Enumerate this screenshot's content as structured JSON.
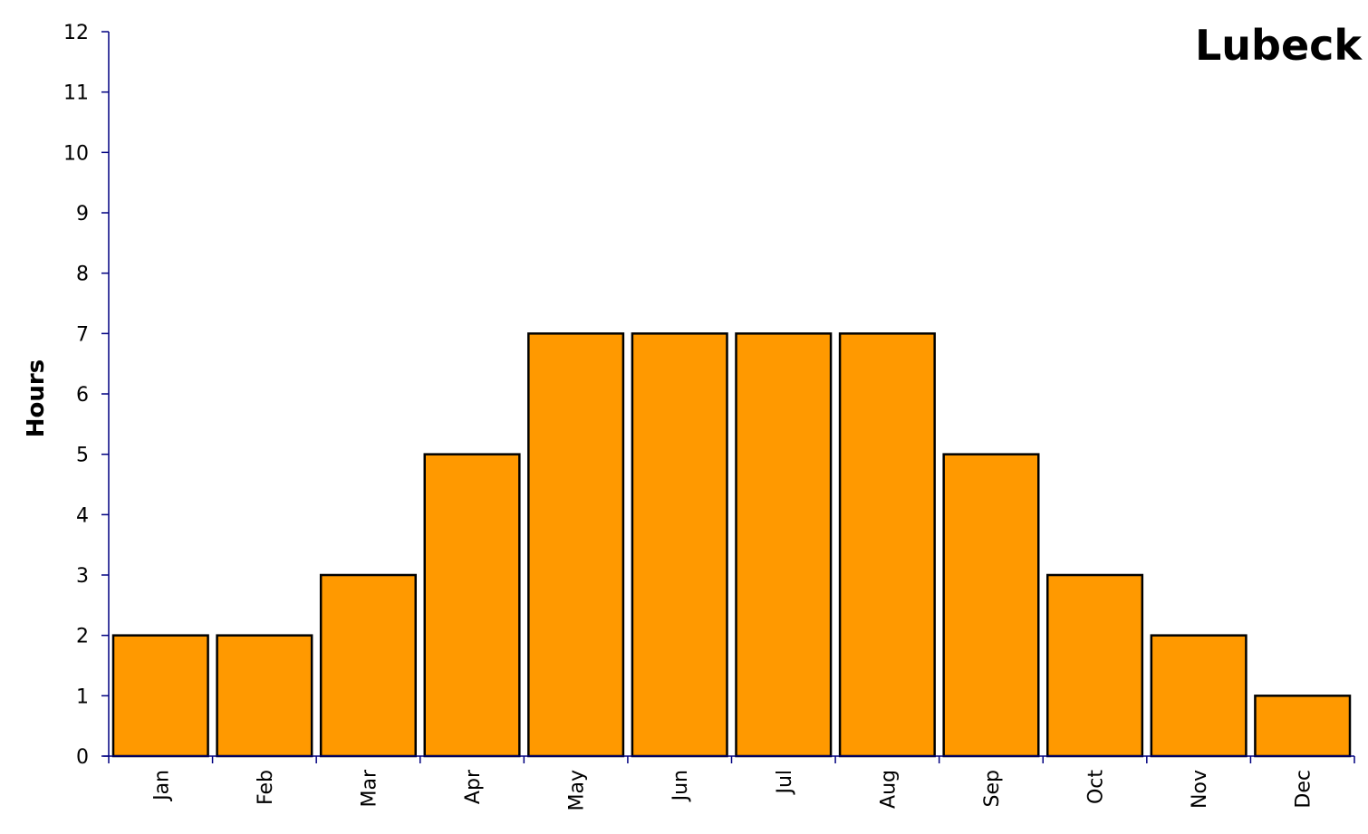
{
  "chart_data": {
    "type": "bar",
    "title": "Lubeck",
    "xlabel": "",
    "ylabel": "Hours",
    "categories": [
      "Jan",
      "Feb",
      "Mar",
      "Apr",
      "May",
      "Jun",
      "Jul",
      "Aug",
      "Sep",
      "Oct",
      "Nov",
      "Dec"
    ],
    "values": [
      2,
      2,
      3,
      5,
      7,
      7,
      7,
      7,
      5,
      3,
      2,
      1
    ],
    "ylim": [
      0,
      12
    ],
    "yticks": [
      0,
      1,
      2,
      3,
      4,
      5,
      6,
      7,
      8,
      9,
      10,
      11,
      12
    ],
    "grid": false,
    "legend": "none",
    "colors": {
      "bar": "#FF9900",
      "bar_edge": "#000000",
      "axis": "#000080"
    }
  }
}
